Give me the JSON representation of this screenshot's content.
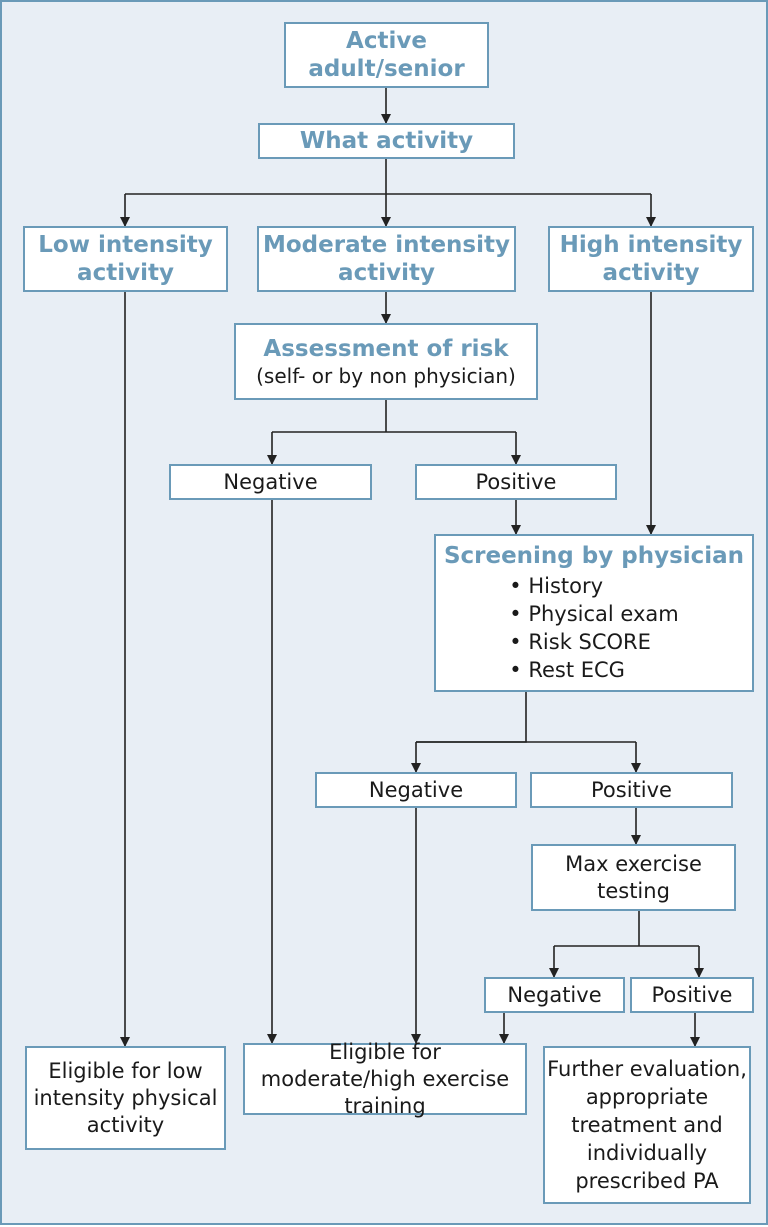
{
  "colors": {
    "accent": "#6a9ab8",
    "background": "#e8eef5",
    "line": "#222222"
  },
  "nodes": {
    "active_adult": "Active adult/senior",
    "what_activity": "What activity",
    "low_intensity": "Low intensity activity",
    "moderate_intensity": "Moderate intensity activity",
    "high_intensity": "High intensity activity",
    "assessment_title": "Assessment of risk",
    "assessment_sub": "(self- or by non physician)",
    "negative_1": "Negative",
    "positive_1": "Positive",
    "screening_title": "Screening by physician",
    "screening_items": [
      "History",
      "Physical exam",
      "Risk SCORE",
      "Rest ECG"
    ],
    "negative_2": "Negative",
    "positive_2": "Positive",
    "max_exercise": "Max exercise testing",
    "negative_3": "Negative",
    "positive_3": "Positive",
    "eligible_low": "Eligible for low intensity physical activity",
    "eligible_moderate": "Eligible for moderate/high exercise training",
    "further_evaluation": "Further evaluation, appropriate treatment and individually prescribed PA"
  }
}
